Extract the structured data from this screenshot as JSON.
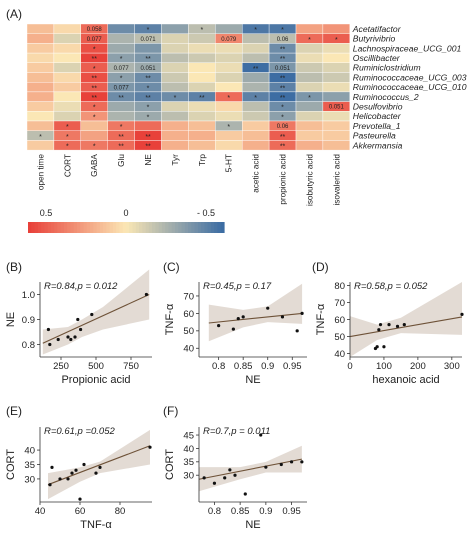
{
  "panel_labels": [
    "(A)",
    "(B)",
    "(C)",
    "(D)",
    "(E)",
    "(F)"
  ],
  "heatmap": {
    "rows": [
      "Acetatifactor",
      "Butyrivibrio",
      "Lachnospiraceae_UCG_001",
      "Oscillibacter",
      "Ruminiclostridium",
      "Ruminococcaceae_UCG_003",
      "Ruminococcaceae_UCG_010",
      "Ruminococcus_2",
      "Desulfovibrio",
      "Helicobacter",
      "Prevotella_1",
      "Pasteurella",
      "Akkermansia"
    ],
    "cols": [
      "open time",
      "CORT",
      "GABA",
      "Glu",
      "NE",
      "Tyr",
      "Trp",
      "5-HT",
      "acetic acid",
      "propionic acid",
      "isobutyric acid",
      "isovaleric acid"
    ],
    "values": [
      [
        0.15,
        0.05,
        0.45,
        -0.45,
        -0.5,
        -0.35,
        -0.2,
        -0.3,
        -0.55,
        -0.55,
        0.25,
        0.3
      ],
      [
        0.2,
        -0.1,
        0.5,
        -0.25,
        -0.2,
        -0.1,
        -0.15,
        0.35,
        -0.2,
        -0.2,
        0.45,
        0.5
      ],
      [
        0.1,
        0.05,
        0.55,
        -0.3,
        -0.4,
        -0.1,
        -0.05,
        -0.05,
        -0.1,
        -0.45,
        -0.1,
        -0.05
      ],
      [
        0.05,
        0.0,
        0.6,
        -0.35,
        -0.4,
        -0.2,
        -0.15,
        -0.1,
        -0.2,
        -0.45,
        -0.05,
        0.0
      ],
      [
        0.1,
        -0.1,
        0.5,
        -0.25,
        -0.3,
        -0.1,
        0.0,
        -0.05,
        -0.6,
        -0.4,
        -0.15,
        -0.1
      ],
      [
        0.15,
        0.05,
        0.55,
        -0.35,
        -0.45,
        -0.15,
        0.0,
        -0.1,
        -0.3,
        -0.6,
        -0.2,
        -0.15
      ],
      [
        0.2,
        0.1,
        0.5,
        -0.4,
        -0.45,
        -0.2,
        -0.1,
        0.0,
        -0.25,
        -0.5,
        -0.1,
        -0.05
      ],
      [
        0.2,
        0.0,
        0.6,
        -0.45,
        -0.5,
        -0.45,
        -0.5,
        0.45,
        -0.5,
        -0.6,
        -0.4,
        -0.35
      ],
      [
        0.1,
        -0.05,
        0.45,
        -0.3,
        -0.35,
        -0.1,
        -0.05,
        0.05,
        -0.2,
        -0.45,
        -0.3,
        0.5
      ],
      [
        0.0,
        -0.1,
        0.3,
        -0.25,
        -0.3,
        -0.2,
        -0.1,
        -0.05,
        -0.15,
        -0.35,
        -0.1,
        -0.05
      ],
      [
        0.15,
        0.5,
        0.15,
        0.4,
        0.45,
        0.2,
        0.15,
        -0.25,
        0.1,
        0.4,
        0.15,
        0.1
      ],
      [
        -0.2,
        0.4,
        0.25,
        0.45,
        0.6,
        0.2,
        0.2,
        0.1,
        0.15,
        0.5,
        0.1,
        0.1
      ],
      [
        0.1,
        0.45,
        0.4,
        0.45,
        0.6,
        0.2,
        0.15,
        0.05,
        0.2,
        0.45,
        0.2,
        0.15
      ]
    ],
    "annotations": [
      [
        0,
        2,
        "0.058"
      ],
      [
        0,
        4,
        "*"
      ],
      [
        0,
        6,
        "*"
      ],
      [
        0,
        8,
        "*"
      ],
      [
        0,
        9,
        "*"
      ],
      [
        1,
        2,
        "0.077"
      ],
      [
        1,
        4,
        "0.071"
      ],
      [
        1,
        7,
        "0.079"
      ],
      [
        1,
        9,
        "0.06"
      ],
      [
        1,
        10,
        "*"
      ],
      [
        1,
        11,
        "*"
      ],
      [
        2,
        2,
        "*"
      ],
      [
        2,
        9,
        "**"
      ],
      [
        3,
        2,
        "**"
      ],
      [
        3,
        3,
        "*"
      ],
      [
        3,
        4,
        "**"
      ],
      [
        3,
        9,
        "**"
      ],
      [
        4,
        2,
        "*"
      ],
      [
        4,
        3,
        "0.077"
      ],
      [
        4,
        4,
        "0.051"
      ],
      [
        4,
        8,
        "**"
      ],
      [
        4,
        9,
        "0.051"
      ],
      [
        5,
        2,
        "**"
      ],
      [
        5,
        3,
        "*"
      ],
      [
        5,
        4,
        "**"
      ],
      [
        5,
        9,
        "**"
      ],
      [
        6,
        2,
        "**"
      ],
      [
        6,
        3,
        "0.077"
      ],
      [
        6,
        4,
        "*"
      ],
      [
        6,
        9,
        "**"
      ],
      [
        7,
        2,
        "**"
      ],
      [
        7,
        3,
        "**"
      ],
      [
        7,
        4,
        "**"
      ],
      [
        7,
        5,
        "*"
      ],
      [
        7,
        6,
        "**"
      ],
      [
        7,
        7,
        "*"
      ],
      [
        7,
        8,
        "*"
      ],
      [
        7,
        9,
        "**"
      ],
      [
        7,
        10,
        "*"
      ],
      [
        8,
        2,
        "*"
      ],
      [
        8,
        4,
        "*"
      ],
      [
        8,
        9,
        "*"
      ],
      [
        8,
        11,
        "0.051"
      ],
      [
        9,
        2,
        "*"
      ],
      [
        9,
        4,
        "*"
      ],
      [
        9,
        9,
        "*"
      ],
      [
        10,
        1,
        "*"
      ],
      [
        10,
        3,
        "*"
      ],
      [
        10,
        7,
        "*"
      ],
      [
        10,
        9,
        "0.06"
      ],
      [
        11,
        0,
        "*"
      ],
      [
        11,
        1,
        "*"
      ],
      [
        11,
        3,
        "**"
      ],
      [
        11,
        4,
        "**"
      ],
      [
        11,
        9,
        "**"
      ],
      [
        12,
        1,
        "*"
      ],
      [
        12,
        2,
        "*"
      ],
      [
        12,
        3,
        "**"
      ],
      [
        12,
        4,
        "**"
      ],
      [
        12,
        9,
        "**"
      ]
    ],
    "colorbar": {
      "labels": [
        "0.5",
        "0",
        "- 0.5"
      ],
      "colors": [
        "#e8413a",
        "#fbe7b5",
        "#3d6da3"
      ]
    }
  },
  "chart_data": [
    {
      "id": "B",
      "type": "scatter",
      "stat": "R=0.84,p = 0.012",
      "xlabel": "Propionic acid",
      "ylabel": "NE",
      "xlim": [
        100,
        900
      ],
      "ylim": [
        0.75,
        1.05
      ],
      "xticks": [
        250,
        500,
        750
      ],
      "yticks": [
        0.8,
        0.9,
        1.0
      ],
      "ytick_labels": [
        "0.8",
        "0.9",
        "1.0"
      ],
      "x": [
        160,
        170,
        230,
        300,
        320,
        350,
        370,
        390,
        470,
        860
      ],
      "y": [
        0.86,
        0.8,
        0.82,
        0.83,
        0.82,
        0.83,
        0.9,
        0.86,
        0.92,
        1.0
      ],
      "fit": [
        [
          120,
          0.805
        ],
        [
          880,
          1.0
        ]
      ],
      "ci": [
        [
          120,
          0.76,
          0.86
        ],
        [
          300,
          0.8,
          0.87
        ],
        [
          400,
          0.83,
          0.9
        ],
        [
          550,
          0.86,
          0.95
        ],
        [
          880,
          0.9,
          1.1
        ]
      ]
    },
    {
      "id": "C",
      "type": "scatter",
      "stat": "R=0.45,p = 0.17",
      "xlabel": "NE",
      "ylabel": "TNF-α",
      "xlim": [
        0.76,
        0.98
      ],
      "ylim": [
        35,
        78
      ],
      "xticks": [
        0.8,
        0.85,
        0.9,
        0.95
      ],
      "yticks": [
        40,
        50,
        60,
        70
      ],
      "x": [
        0.8,
        0.83,
        0.84,
        0.85,
        0.9,
        0.93,
        0.96,
        0.97
      ],
      "y": [
        53,
        51,
        57,
        58,
        63,
        58,
        50,
        60
      ],
      "fit": [
        [
          0.78,
          54.5
        ],
        [
          0.97,
          60
        ]
      ],
      "ci": [
        [
          0.78,
          44,
          65
        ],
        [
          0.85,
          52,
          62
        ],
        [
          0.9,
          55,
          64
        ],
        [
          0.97,
          54,
          77
        ]
      ]
    },
    {
      "id": "D",
      "type": "scatter",
      "stat": "R=0.58,p = 0.052",
      "xlabel": "hexanoic acid",
      "ylabel": "TNF-α",
      "xlim": [
        0,
        330
      ],
      "ylim": [
        38,
        82
      ],
      "xticks": [
        0,
        100,
        200,
        300
      ],
      "yticks": [
        40,
        50,
        60,
        70,
        80
      ],
      "x": [
        75,
        80,
        85,
        90,
        100,
        115,
        140,
        160,
        330
      ],
      "y": [
        43,
        44,
        54,
        57,
        44,
        57,
        56,
        57,
        63
      ],
      "fit": [
        [
          0,
          50
        ],
        [
          330,
          61.5
        ]
      ],
      "ci": [
        [
          0,
          38,
          62
        ],
        [
          80,
          48,
          57
        ],
        [
          150,
          52,
          61
        ],
        [
          330,
          51,
          82
        ]
      ]
    },
    {
      "id": "E",
      "type": "scatter",
      "stat": "R=0.61,p =0.052",
      "xlabel": "TNF-α",
      "ylabel": "CORT",
      "xlim": [
        40,
        96
      ],
      "ylim": [
        22,
        48
      ],
      "xticks": [
        40,
        60,
        80
      ],
      "yticks": [
        30,
        35,
        40
      ],
      "x": [
        45,
        46,
        50,
        54,
        56,
        58,
        60,
        62,
        68,
        70,
        95
      ],
      "y": [
        28,
        34,
        30,
        30,
        32,
        33,
        23,
        35,
        32,
        34,
        41
      ],
      "fit": [
        [
          44,
          28
        ],
        [
          95,
          41.5
        ]
      ],
      "ci": [
        [
          44,
          23,
          32
        ],
        [
          60,
          29,
          34
        ],
        [
          70,
          32,
          36
        ],
        [
          95,
          35,
          47
        ]
      ]
    },
    {
      "id": "F",
      "type": "scatter",
      "stat": "R=0.7,p = 0.011",
      "xlabel": "NE",
      "ylabel": "CORT",
      "xlim": [
        0.77,
        0.98
      ],
      "ylim": [
        20,
        48
      ],
      "xticks": [
        0.8,
        0.85,
        0.9,
        0.95
      ],
      "yticks": [
        30,
        35,
        40,
        45
      ],
      "x": [
        0.78,
        0.8,
        0.82,
        0.83,
        0.84,
        0.86,
        0.89,
        0.9,
        0.93,
        0.95,
        0.97
      ],
      "y": [
        29,
        27,
        29,
        32,
        30,
        23,
        45,
        33,
        34,
        35,
        35
      ],
      "fit": [
        [
          0.77,
          28.5
        ],
        [
          0.97,
          36
        ]
      ],
      "ci": [
        [
          0.77,
          24,
          33
        ],
        [
          0.85,
          28.5,
          33
        ],
        [
          0.9,
          31,
          35
        ],
        [
          0.97,
          31,
          41
        ]
      ]
    }
  ]
}
